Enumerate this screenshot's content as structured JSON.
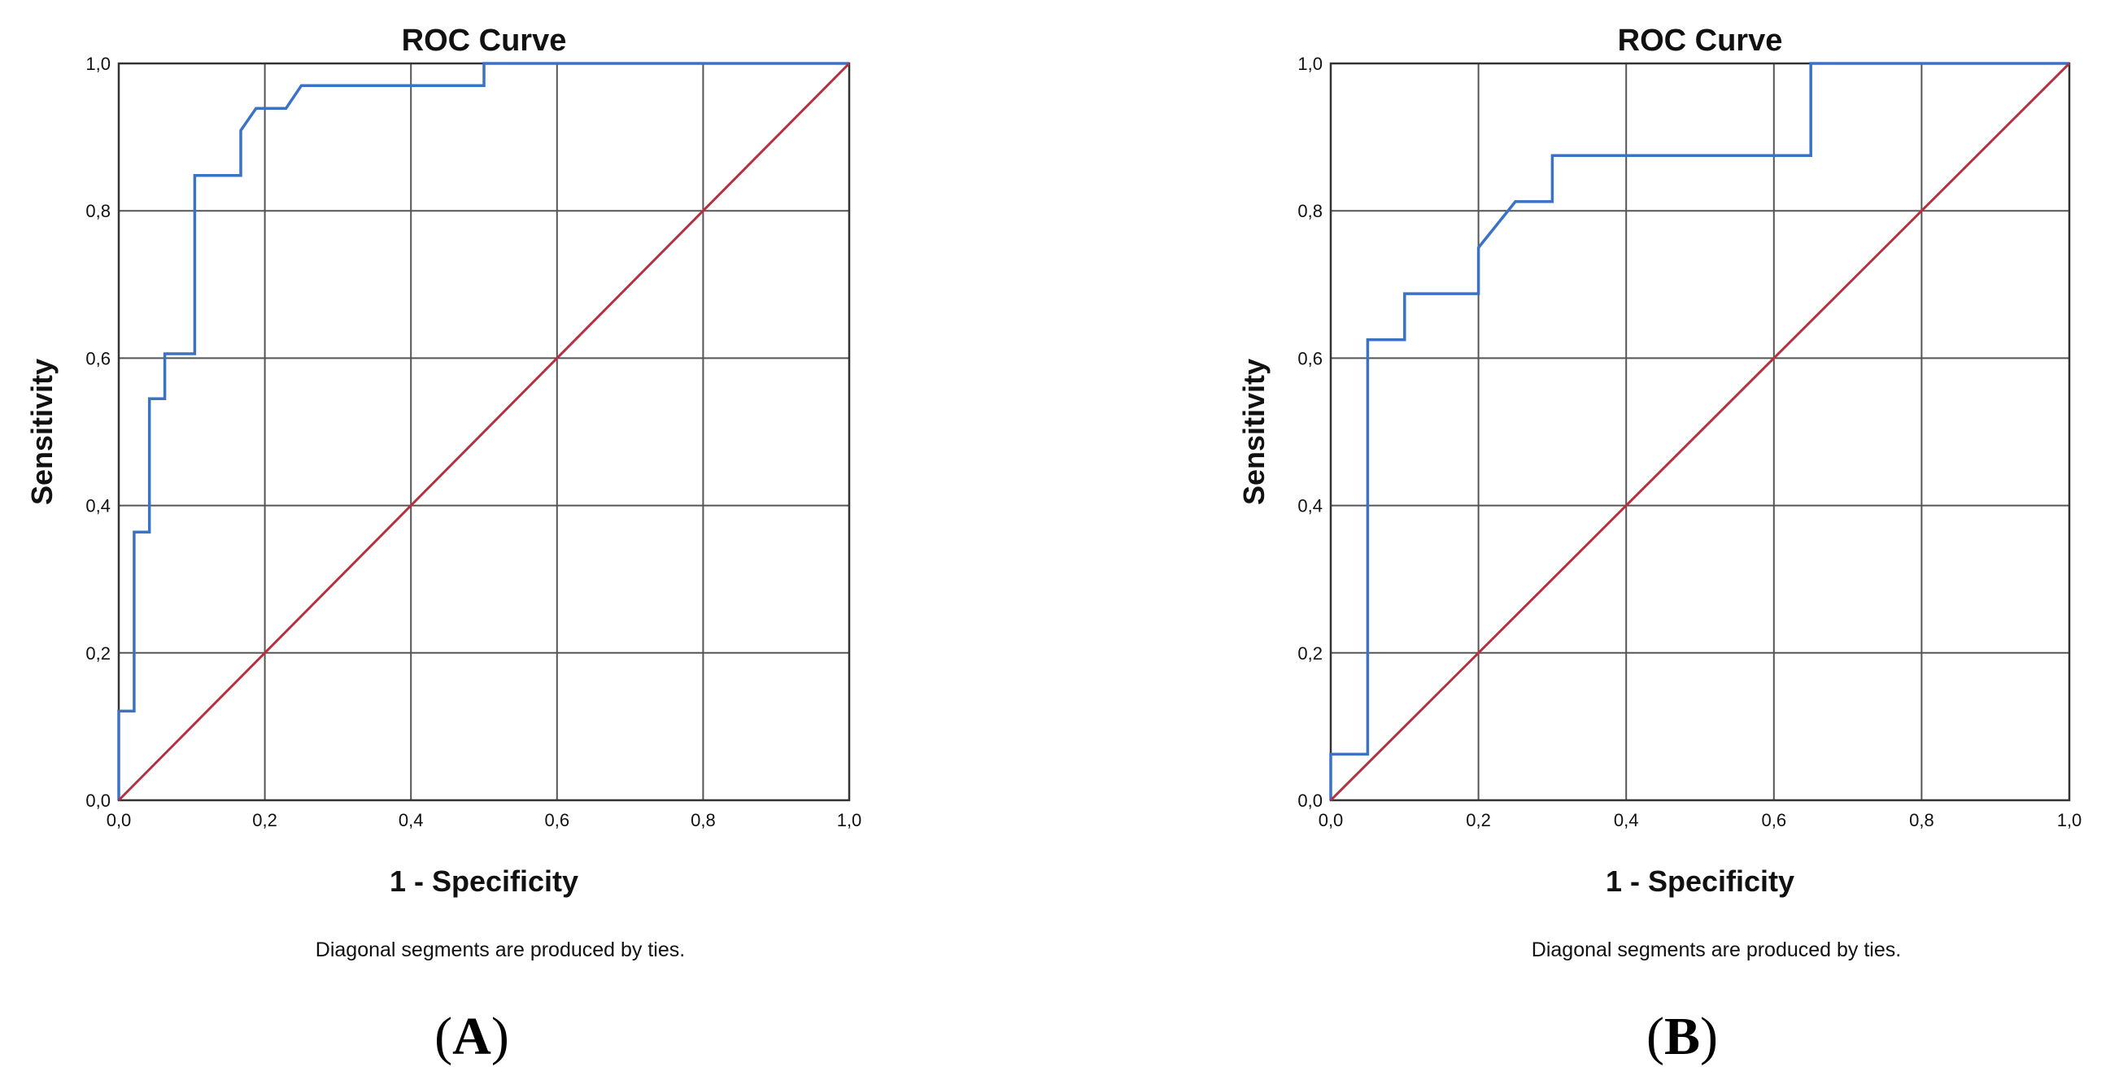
{
  "chart_data": [
    {
      "type": "line",
      "panel_label_open": "(",
      "panel_label_letter": "A",
      "panel_label_close": ")",
      "title": "ROC Curve",
      "xlabel": "1 - Specificity",
      "ylabel": "Sensitivity",
      "note": "Diagonal segments are produced by ties.",
      "xlim": [
        0,
        1
      ],
      "ylim": [
        0,
        1
      ],
      "xticks": [
        "0,0",
        "0,2",
        "0,4",
        "0,6",
        "0,8",
        "1,0"
      ],
      "yticks": [
        "0,0",
        "0,2",
        "0,4",
        "0,6",
        "0,8",
        "1,0"
      ],
      "grid": true,
      "series": [
        {
          "role": "roc",
          "color": "#3a73c4",
          "x": [
            0.0,
            0.0,
            0.021,
            0.021,
            0.042,
            0.042,
            0.063,
            0.063,
            0.104,
            0.104,
            0.167,
            0.167,
            0.188,
            0.229,
            0.25,
            0.5,
            0.5,
            1.0
          ],
          "y": [
            0.0,
            0.121,
            0.121,
            0.364,
            0.364,
            0.545,
            0.545,
            0.606,
            0.606,
            0.848,
            0.848,
            0.909,
            0.939,
            0.939,
            0.97,
            0.97,
            1.0,
            1.0
          ]
        },
        {
          "role": "reference",
          "color": "#b5313f",
          "x": [
            0,
            1
          ],
          "y": [
            0,
            1
          ]
        }
      ]
    },
    {
      "type": "line",
      "panel_label_open": "(",
      "panel_label_letter": "B",
      "panel_label_close": ")",
      "title": "ROC Curve",
      "xlabel": "1 - Specificity",
      "ylabel": "Sensitivity",
      "note": "Diagonal segments are produced by ties.",
      "xlim": [
        0,
        1
      ],
      "ylim": [
        0,
        1
      ],
      "xticks": [
        "0,0",
        "0,2",
        "0,4",
        "0,6",
        "0,8",
        "1,0"
      ],
      "yticks": [
        "0,0",
        "0,2",
        "0,4",
        "0,6",
        "0,8",
        "1,0"
      ],
      "grid": true,
      "series": [
        {
          "role": "roc",
          "color": "#3a73c4",
          "x": [
            0.0,
            0.0,
            0.05,
            0.05,
            0.1,
            0.1,
            0.2,
            0.2,
            0.25,
            0.3,
            0.3,
            0.65,
            0.65,
            1.0
          ],
          "y": [
            0.0,
            0.0625,
            0.0625,
            0.625,
            0.625,
            0.6875,
            0.6875,
            0.75,
            0.8125,
            0.8125,
            0.875,
            0.875,
            1.0,
            1.0
          ]
        },
        {
          "role": "reference",
          "color": "#b5313f",
          "x": [
            0,
            1
          ],
          "y": [
            0,
            1
          ]
        }
      ]
    }
  ]
}
